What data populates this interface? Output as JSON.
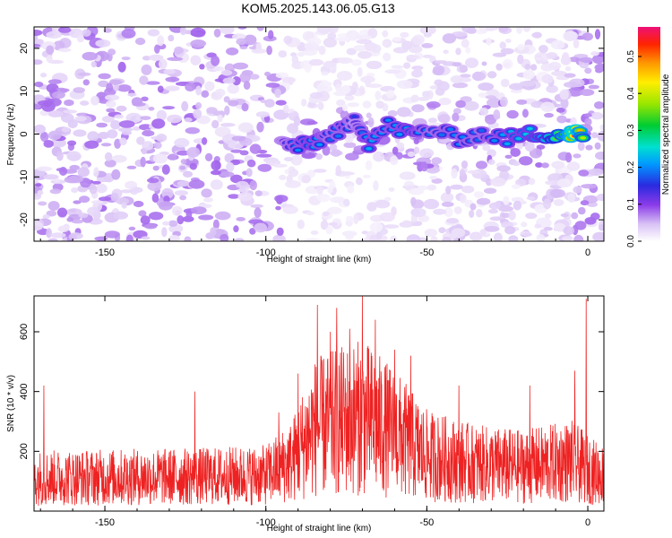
{
  "figure": {
    "title": "KOM5.2025.143.06.05.G13"
  },
  "chart_data": [
    {
      "type": "heatmap",
      "title": "KOM5.2025.143.06.05.G13",
      "xlabel": "Height of straight line (km)",
      "ylabel": "Frequency (Hz)",
      "xlim": [
        -172,
        5
      ],
      "ylim": [
        -25,
        25
      ],
      "xticks": [
        -150,
        -100,
        -50,
        0
      ],
      "xtick_labels": [
        "-150",
        "-100",
        "-50",
        "0"
      ],
      "yticks": [
        -20,
        -10,
        0,
        10,
        20
      ],
      "ytick_labels": [
        "-20",
        "-10",
        "0",
        "10",
        "20"
      ],
      "colorbar": {
        "label": "Normalized spectral amplitude",
        "range": [
          0,
          0.58
        ],
        "ticks": [
          0.0,
          0.1,
          0.2,
          0.3,
          0.4,
          0.5
        ],
        "tick_labels": [
          "0.0",
          "0.1",
          "0.2",
          "0.3",
          "0.4",
          "0.5"
        ]
      },
      "ridge": [
        {
          "x": -95,
          "freq": -2,
          "amp": 0.15
        },
        {
          "x": -90,
          "freq": -3,
          "amp": 0.2
        },
        {
          "x": -85,
          "freq": -2,
          "amp": 0.22
        },
        {
          "x": -80,
          "freq": 0,
          "amp": 0.18
        },
        {
          "x": -75,
          "freq": 1,
          "amp": 0.2
        },
        {
          "x": -72,
          "freq": 4,
          "amp": 0.15
        },
        {
          "x": -68,
          "freq": -2,
          "amp": 0.22
        },
        {
          "x": -62,
          "freq": 2,
          "amp": 0.2
        },
        {
          "x": -55,
          "freq": 0,
          "amp": 0.22
        },
        {
          "x": -48,
          "freq": 1,
          "amp": 0.18
        },
        {
          "x": -40,
          "freq": -1,
          "amp": 0.2
        },
        {
          "x": -33,
          "freq": 0,
          "amp": 0.18
        },
        {
          "x": -25,
          "freq": -1,
          "amp": 0.22
        },
        {
          "x": -18,
          "freq": 0,
          "amp": 0.24
        },
        {
          "x": -12,
          "freq": 0,
          "amp": 0.3
        },
        {
          "x": -6,
          "freq": 0,
          "amp": 0.45
        },
        {
          "x": -4,
          "freq": 0,
          "amp": 0.58
        },
        {
          "x": -1,
          "freq": 0,
          "amp": 0.35
        }
      ],
      "background_level": 0.06
    },
    {
      "type": "line",
      "xlabel": "Height of straight line (km)",
      "ylabel": "SNR (10 * v/v)",
      "xlim": [
        -172,
        5
      ],
      "ylim": [
        0,
        720
      ],
      "xticks": [
        -150,
        -100,
        -50,
        0
      ],
      "xtick_labels": [
        "-150",
        "-100",
        "-50",
        "0"
      ],
      "yticks": [
        200,
        400,
        600
      ],
      "ytick_labels": [
        "200",
        "400",
        "600"
      ],
      "color": "#ee2222",
      "baseline": [
        {
          "x": -172,
          "y": 120
        },
        {
          "x": -120,
          "y": 125
        },
        {
          "x": -100,
          "y": 130
        },
        {
          "x": -92,
          "y": 180
        },
        {
          "x": -85,
          "y": 300
        },
        {
          "x": -75,
          "y": 330
        },
        {
          "x": -70,
          "y": 340
        },
        {
          "x": -60,
          "y": 280
        },
        {
          "x": -50,
          "y": 200
        },
        {
          "x": -35,
          "y": 170
        },
        {
          "x": -20,
          "y": 160
        },
        {
          "x": -5,
          "y": 180
        },
        {
          "x": 0,
          "y": 150
        },
        {
          "x": 5,
          "y": 130
        }
      ],
      "peaks": [
        {
          "x": -169,
          "y": 420
        },
        {
          "x": -122,
          "y": 400
        },
        {
          "x": -96,
          "y": 330
        },
        {
          "x": -90,
          "y": 460
        },
        {
          "x": -84,
          "y": 690
        },
        {
          "x": -80,
          "y": 600
        },
        {
          "x": -78,
          "y": 680
        },
        {
          "x": -74,
          "y": 610
        },
        {
          "x": -70,
          "y": 720
        },
        {
          "x": -66,
          "y": 640
        },
        {
          "x": -60,
          "y": 540
        },
        {
          "x": -55,
          "y": 520
        },
        {
          "x": -40,
          "y": 420
        },
        {
          "x": -18,
          "y": 420
        },
        {
          "x": -4,
          "y": 470
        },
        {
          "x": -0.5,
          "y": 710
        }
      ]
    }
  ]
}
